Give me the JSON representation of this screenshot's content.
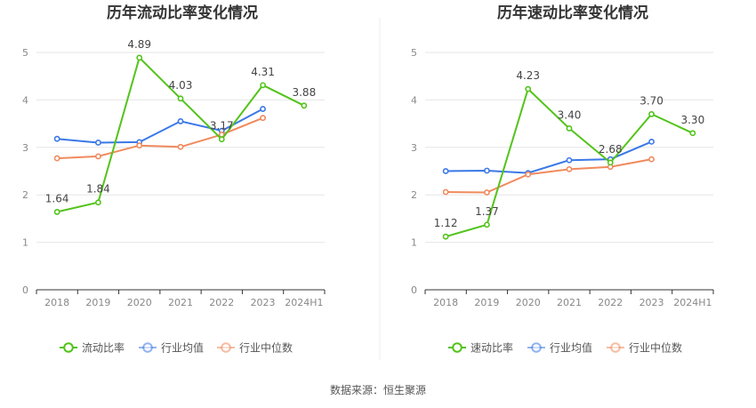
{
  "source_text": "数据来源：恒生聚源",
  "chart_data": [
    {
      "type": "line",
      "title": "历年流动比率变化情况",
      "categories": [
        "2018",
        "2019",
        "2020",
        "2021",
        "2022",
        "2023",
        "2024H1"
      ],
      "ylim": [
        0,
        5
      ],
      "yticks": [
        "0",
        "1",
        "2",
        "3",
        "4",
        "5"
      ],
      "series": [
        {
          "name": "流动比率",
          "color": "#52c41a",
          "labeled": true,
          "values": [
            1.64,
            1.84,
            4.89,
            4.03,
            3.17,
            4.31,
            3.88
          ],
          "labels": [
            "1.64",
            "1.84",
            "4.89",
            "4.03",
            "3.17",
            "4.31",
            "3.88"
          ]
        },
        {
          "name": "行业均值",
          "color": "#3b78e7",
          "labeled": false,
          "values": [
            3.18,
            3.1,
            3.11,
            3.55,
            3.35,
            3.81,
            null
          ]
        },
        {
          "name": "行业中位数",
          "color": "#f08a5d",
          "labeled": false,
          "values": [
            2.77,
            2.81,
            3.04,
            3.01,
            3.27,
            3.62,
            null
          ]
        }
      ]
    },
    {
      "type": "line",
      "title": "历年速动比率变化情况",
      "categories": [
        "2018",
        "2019",
        "2020",
        "2021",
        "2022",
        "2023",
        "2024H1"
      ],
      "ylim": [
        0,
        5
      ],
      "yticks": [
        "0",
        "1",
        "2",
        "3",
        "4",
        "5"
      ],
      "series": [
        {
          "name": "速动比率",
          "color": "#52c41a",
          "labeled": true,
          "values": [
            1.12,
            1.37,
            4.23,
            3.4,
            2.68,
            3.7,
            3.3
          ],
          "labels": [
            "1.12",
            "1.37",
            "4.23",
            "3.40",
            "2.68",
            "3.70",
            "3.30"
          ]
        },
        {
          "name": "行业均值",
          "color": "#3b78e7",
          "labeled": false,
          "values": [
            2.5,
            2.51,
            2.46,
            2.73,
            2.75,
            3.12,
            null
          ]
        },
        {
          "name": "行业中位数",
          "color": "#f08a5d",
          "labeled": false,
          "values": [
            2.06,
            2.05,
            2.43,
            2.54,
            2.59,
            2.75,
            null
          ]
        }
      ]
    }
  ]
}
